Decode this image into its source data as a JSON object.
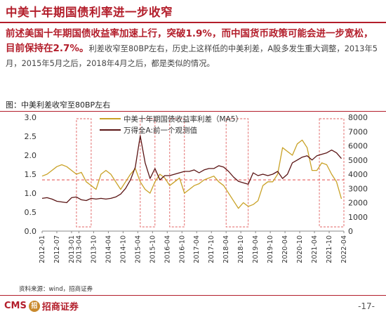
{
  "slide": {
    "title": "中美十年期国债利率进一步收窄",
    "para_highlight_1": "前述美国十年期国债收益率加速上行，突破1.9%，而中国货币政策可能会进一步宽松，目前保持在2.7%。",
    "para_normal": "利差收窄至80BP左右，历史上这样低的中美利差，A股多发生重大调整，2013年5月，2015年5月之后，2018年4月之后，都是类似的情况。",
    "chart_heading": "图：中美利差收窄至80BP左右",
    "source": "资料来源：wind，招商证券",
    "logo_text": "CMS",
    "logo_badge": "招",
    "logo_brand": "招商证券",
    "page_number": "-17-"
  },
  "colors": {
    "brand": "#b31e2b",
    "spread_line": "#c9a227",
    "index_line": "#5a1414",
    "dashed_box": "#e06060",
    "ref_line": "#e03030"
  },
  "chart_data": {
    "type": "line",
    "legend": [
      "中美十年期国债收益率利差（MA5）",
      "万得全A:前一个观测值"
    ],
    "x_ticks": [
      "2012-01",
      "2012-07",
      "2013-01",
      "2013-04",
      "2013-10",
      "2014-04",
      "2014-10",
      "2015-04",
      "2015-10",
      "2016-04",
      "2016-10",
      "2017-04",
      "2017-10",
      "2018-04",
      "2018-10",
      "2019-04",
      "2019-10",
      "2020-04",
      "2020-10",
      "2021-04",
      "2021-10",
      "2022-04"
    ],
    "x_tick_labels": [
      "2012-01",
      "2012-07",
      "2013-01",
      "2013-04",
      "2013-10",
      "2014-04",
      "2014-10",
      "2015-04",
      "2015-10",
      "2016-04",
      "2016-10",
      "2017-04",
      "2017-10",
      "2018-04",
      "2018-10",
      "2019-04",
      "2019-10",
      "2020-04",
      "2020-10",
      "2021-04",
      "2021-10",
      "2022-04"
    ],
    "y_left": {
      "min": 0.0,
      "max": 3.0,
      "ticks": [
        0.0,
        0.5,
        1.0,
        1.5,
        2.0,
        2.5,
        3.0
      ],
      "tick_labels": [
        "0.0",
        "0.5",
        "1.0",
        "1.5",
        "2.0",
        "2.5",
        "3.0"
      ]
    },
    "y_right": {
      "min": 0,
      "max": 8000,
      "ticks": [
        0,
        1000,
        2000,
        3000,
        4000,
        5000,
        6000,
        7000,
        8000
      ],
      "tick_labels": [
        "0",
        "1000",
        "2000",
        "3000",
        "4000",
        "5000",
        "6000",
        "7000",
        "8000"
      ]
    },
    "reference_line_left": 1.35,
    "highlight_periods": [
      [
        "2013-03",
        "2013-09"
      ],
      [
        "2015-05",
        "2015-11"
      ],
      [
        "2016-05",
        "2016-11"
      ],
      [
        "2018-04",
        "2019-01"
      ],
      [
        "2021-06",
        "2022-04"
      ]
    ],
    "series": [
      {
        "name": "中美十年期国债收益率利差（MA5）",
        "axis": "left",
        "dates": [
          "2012-01",
          "2012-03",
          "2012-05",
          "2012-07",
          "2012-09",
          "2012-11",
          "2013-01",
          "2013-03",
          "2013-05",
          "2013-07",
          "2013-09",
          "2013-11",
          "2014-01",
          "2014-03",
          "2014-05",
          "2014-07",
          "2014-09",
          "2014-11",
          "2015-01",
          "2015-03",
          "2015-05",
          "2015-07",
          "2015-09",
          "2015-11",
          "2016-01",
          "2016-03",
          "2016-05",
          "2016-07",
          "2016-09",
          "2016-11",
          "2017-01",
          "2017-03",
          "2017-05",
          "2017-07",
          "2017-09",
          "2017-11",
          "2018-01",
          "2018-03",
          "2018-05",
          "2018-07",
          "2018-09",
          "2018-11",
          "2019-01",
          "2019-03",
          "2019-05",
          "2019-07",
          "2019-09",
          "2019-11",
          "2020-01",
          "2020-03",
          "2020-05",
          "2020-07",
          "2020-09",
          "2020-11",
          "2021-01",
          "2021-03",
          "2021-05",
          "2021-07",
          "2021-09",
          "2021-11",
          "2022-01",
          "2022-03"
        ],
        "values": [
          1.45,
          1.5,
          1.6,
          1.7,
          1.75,
          1.7,
          1.6,
          1.5,
          1.55,
          1.3,
          1.2,
          1.1,
          1.5,
          1.6,
          1.5,
          1.3,
          1.1,
          1.3,
          1.5,
          1.65,
          1.3,
          1.1,
          1.0,
          1.3,
          1.5,
          1.4,
          1.2,
          1.3,
          1.4,
          1.0,
          1.1,
          1.2,
          1.25,
          1.35,
          1.4,
          1.45,
          1.3,
          1.2,
          1.0,
          0.8,
          0.6,
          0.75,
          0.65,
          0.7,
          0.8,
          1.2,
          1.3,
          1.3,
          1.5,
          2.2,
          2.1,
          2.0,
          2.3,
          2.4,
          2.2,
          1.6,
          1.6,
          1.8,
          1.75,
          1.5,
          1.3,
          0.85
        ]
      },
      {
        "name": "万得全A:前一个观测值",
        "axis": "right",
        "dates": [
          "2012-01",
          "2012-03",
          "2012-05",
          "2012-07",
          "2012-09",
          "2012-11",
          "2013-01",
          "2013-03",
          "2013-05",
          "2013-07",
          "2013-09",
          "2013-11",
          "2014-01",
          "2014-03",
          "2014-05",
          "2014-07",
          "2014-09",
          "2014-11",
          "2015-01",
          "2015-03",
          "2015-05",
          "2015-07",
          "2015-09",
          "2015-11",
          "2016-01",
          "2016-03",
          "2016-05",
          "2016-07",
          "2016-09",
          "2016-11",
          "2017-01",
          "2017-03",
          "2017-05",
          "2017-07",
          "2017-09",
          "2017-11",
          "2018-01",
          "2018-03",
          "2018-05",
          "2018-07",
          "2018-09",
          "2018-11",
          "2019-01",
          "2019-03",
          "2019-05",
          "2019-07",
          "2019-09",
          "2019-11",
          "2020-01",
          "2020-03",
          "2020-05",
          "2020-07",
          "2020-09",
          "2020-11",
          "2021-01",
          "2021-03",
          "2021-05",
          "2021-07",
          "2021-09",
          "2021-11",
          "2022-01",
          "2022-03"
        ],
        "values": [
          2300,
          2350,
          2250,
          2100,
          2050,
          2000,
          2350,
          2400,
          2200,
          2150,
          2300,
          2250,
          2300,
          2250,
          2300,
          2400,
          2600,
          3000,
          3600,
          4500,
          6700,
          4800,
          3700,
          4400,
          3600,
          3900,
          3900,
          4000,
          4100,
          4200,
          4200,
          4300,
          4100,
          4300,
          4400,
          4400,
          4600,
          4500,
          4200,
          3800,
          3500,
          3400,
          3300,
          4100,
          3900,
          4000,
          3900,
          4000,
          4200,
          3700,
          4000,
          4800,
          5000,
          5200,
          5300,
          5000,
          5300,
          5400,
          5500,
          5700,
          5500,
          5100
        ]
      }
    ]
  }
}
